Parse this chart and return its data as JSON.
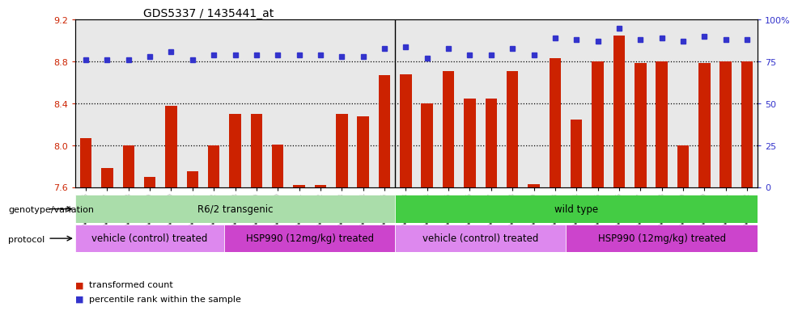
{
  "title": "GDS5337 / 1435441_at",
  "samples": [
    "GSM736026",
    "GSM736027",
    "GSM736028",
    "GSM736029",
    "GSM736030",
    "GSM736031",
    "GSM736032",
    "GSM736018",
    "GSM736019",
    "GSM736020",
    "GSM736021",
    "GSM736022",
    "GSM736023",
    "GSM736024",
    "GSM736025",
    "GSM736043",
    "GSM736044",
    "GSM736045",
    "GSM736046",
    "GSM736047",
    "GSM736048",
    "GSM736049",
    "GSM736033",
    "GSM736034",
    "GSM736035",
    "GSM736036",
    "GSM736037",
    "GSM736038",
    "GSM736039",
    "GSM736040",
    "GSM736041",
    "GSM736042"
  ],
  "bar_values": [
    8.07,
    7.78,
    8.0,
    7.7,
    8.38,
    7.75,
    8.0,
    8.3,
    8.3,
    8.01,
    7.62,
    7.62,
    8.3,
    8.28,
    8.67,
    8.68,
    8.4,
    8.71,
    8.45,
    8.45,
    8.71,
    7.63,
    8.83,
    8.25,
    8.8,
    9.05,
    8.79,
    8.8,
    8.0,
    8.79,
    8.8,
    8.8
  ],
  "dot_values": [
    76,
    76,
    76,
    78,
    81,
    76,
    79,
    79,
    79,
    79,
    79,
    79,
    78,
    78,
    83,
    84,
    77,
    83,
    79,
    79,
    83,
    79,
    89,
    88,
    87,
    95,
    88,
    89,
    87,
    90,
    88,
    88
  ],
  "ylim_left": [
    7.6,
    9.2
  ],
  "ylim_right": [
    0,
    100
  ],
  "yticks_left": [
    7.6,
    8.0,
    8.4,
    8.8,
    9.2
  ],
  "yticks_right": [
    0,
    25,
    50,
    75,
    100
  ],
  "bar_color": "#cc2200",
  "dot_color": "#3333cc",
  "plot_bg_color": "#e8e8e8",
  "genotype_groups": [
    {
      "label": "R6/2 transgenic",
      "start": 0,
      "end": 14,
      "color": "#aaddaa"
    },
    {
      "label": "wild type",
      "start": 15,
      "end": 31,
      "color": "#44cc44"
    }
  ],
  "protocol_groups": [
    {
      "label": "vehicle (control) treated",
      "start": 0,
      "end": 6,
      "color": "#dd88ee"
    },
    {
      "label": "HSP990 (12mg/kg) treated",
      "start": 7,
      "end": 14,
      "color": "#cc44cc"
    },
    {
      "label": "vehicle (control) treated",
      "start": 15,
      "end": 22,
      "color": "#dd88ee"
    },
    {
      "label": "HSP990 (12mg/kg) treated",
      "start": 23,
      "end": 31,
      "color": "#cc44cc"
    }
  ],
  "legend_items": [
    {
      "label": "transformed count",
      "color": "#cc2200",
      "marker": "s"
    },
    {
      "label": "percentile rank within the sample",
      "color": "#3333cc",
      "marker": "s"
    }
  ],
  "hlines": [
    8.0,
    8.4,
    8.8
  ],
  "vline": 14.5
}
